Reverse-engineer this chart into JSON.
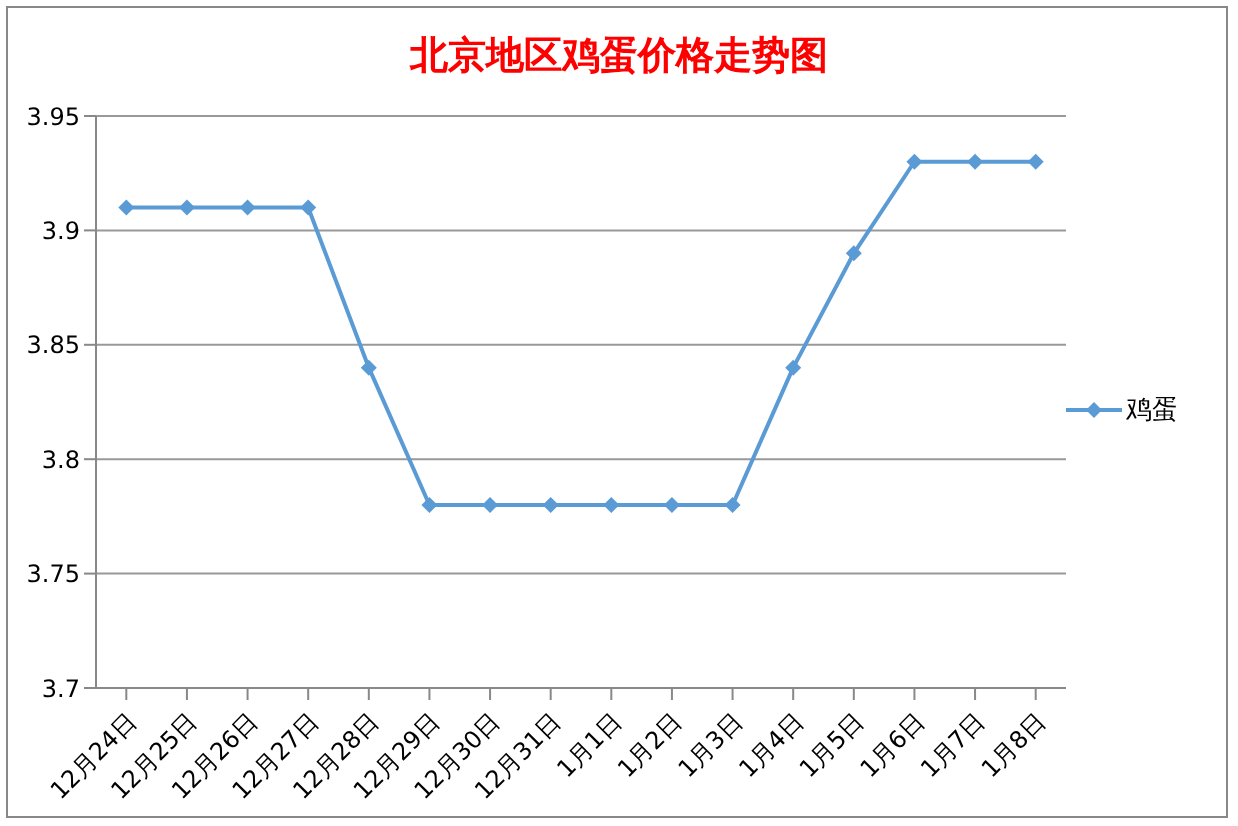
{
  "chart_data": {
    "type": "line",
    "title": "北京地区鸡蛋价格走势图",
    "categories": [
      "12月24日",
      "12月25日",
      "12月26日",
      "12月27日",
      "12月28日",
      "12月29日",
      "12月30日",
      "12月31日",
      "1月1日",
      "1月2日",
      "1月3日",
      "1月4日",
      "1月5日",
      "1月6日",
      "1月7日",
      "1月8日"
    ],
    "series": [
      {
        "name": "鸡蛋",
        "color": "#5b9bd5",
        "values": [
          3.91,
          3.91,
          3.91,
          3.91,
          3.84,
          3.78,
          3.78,
          3.78,
          3.78,
          3.78,
          3.78,
          3.84,
          3.89,
          3.93,
          3.93,
          3.93
        ]
      }
    ],
    "ylim": [
      3.7,
      3.95
    ],
    "yticks": [
      3.7,
      3.75,
      3.8,
      3.85,
      3.9,
      3.95
    ],
    "grid": "y",
    "legend": "right",
    "marker": "diamond",
    "line_style": "solid"
  }
}
